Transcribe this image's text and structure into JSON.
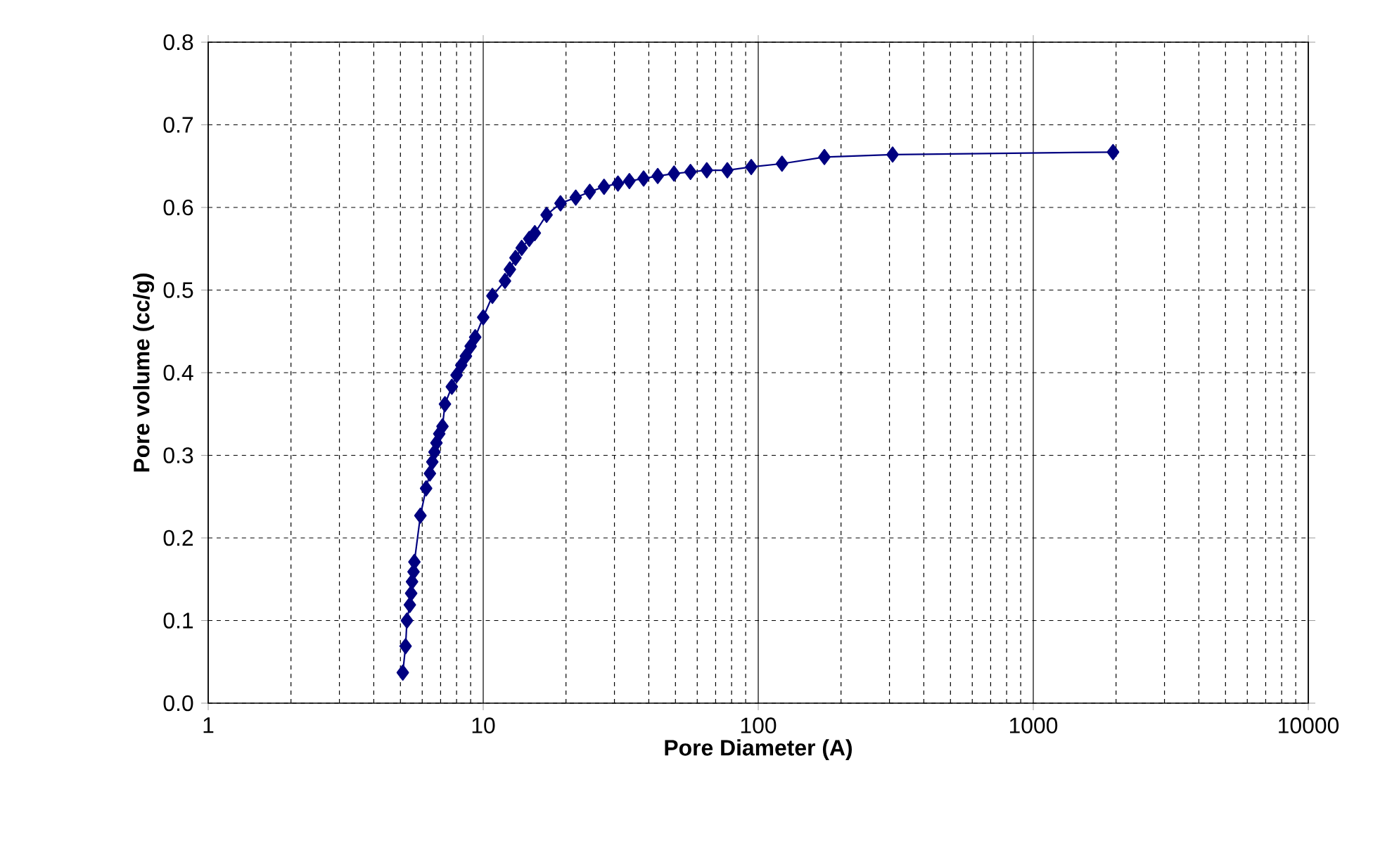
{
  "chart_data": {
    "type": "line",
    "xlabel": "Pore Diameter (A)",
    "ylabel": "Pore volume (cc/g)",
    "log": "x",
    "grid": true,
    "marker": "diamond",
    "line_style": "solid",
    "xlim": [
      1,
      10000
    ],
    "xticks": [
      1,
      10,
      100,
      1000,
      10000
    ],
    "ylim": [
      0,
      0.8
    ],
    "yticks": [
      {
        "value": 0,
        "label": "0.0"
      },
      {
        "value": 0.1,
        "label": "0.1"
      },
      {
        "value": 0.2,
        "label": "0.2"
      },
      {
        "value": 0.3,
        "label": "0.3"
      },
      {
        "value": 0.4,
        "label": "0.4"
      },
      {
        "value": 0.5,
        "label": "0.5"
      },
      {
        "value": 0.6,
        "label": "0.6"
      },
      {
        "value": 0.7,
        "label": "0.7"
      },
      {
        "value": 0.8,
        "label": "0.8"
      }
    ],
    "series": [
      {
        "color": "#000080",
        "x": [
          5.1,
          5.22,
          5.28,
          5.41,
          5.47,
          5.51,
          5.58,
          5.62,
          5.91,
          6.2,
          6.4,
          6.53,
          6.65,
          6.76,
          6.92,
          7.11,
          7.26,
          7.69,
          8.0,
          8.32,
          8.65,
          9.0,
          9.35,
          10.0,
          10.8,
          12.0,
          12.5,
          13.1,
          13.8,
          14.7,
          15.4,
          17.0,
          19.1,
          21.7,
          24.4,
          27.5,
          30.9,
          34.0,
          38.3,
          43.1,
          49.4,
          56.7,
          65.0,
          77.2,
          94.3,
          122,
          174,
          308,
          1950
        ],
        "values": [
          0.037,
          0.069,
          0.1,
          0.119,
          0.133,
          0.147,
          0.159,
          0.171,
          0.227,
          0.26,
          0.278,
          0.292,
          0.304,
          0.315,
          0.326,
          0.335,
          0.362,
          0.383,
          0.397,
          0.409,
          0.42,
          0.432,
          0.443,
          0.467,
          0.493,
          0.511,
          0.525,
          0.539,
          0.551,
          0.562,
          0.569,
          0.591,
          0.605,
          0.612,
          0.619,
          0.625,
          0.629,
          0.632,
          0.635,
          0.638,
          0.641,
          0.643,
          0.645,
          0.645,
          0.649,
          0.653,
          0.661,
          0.664,
          0.667
        ]
      }
    ]
  }
}
